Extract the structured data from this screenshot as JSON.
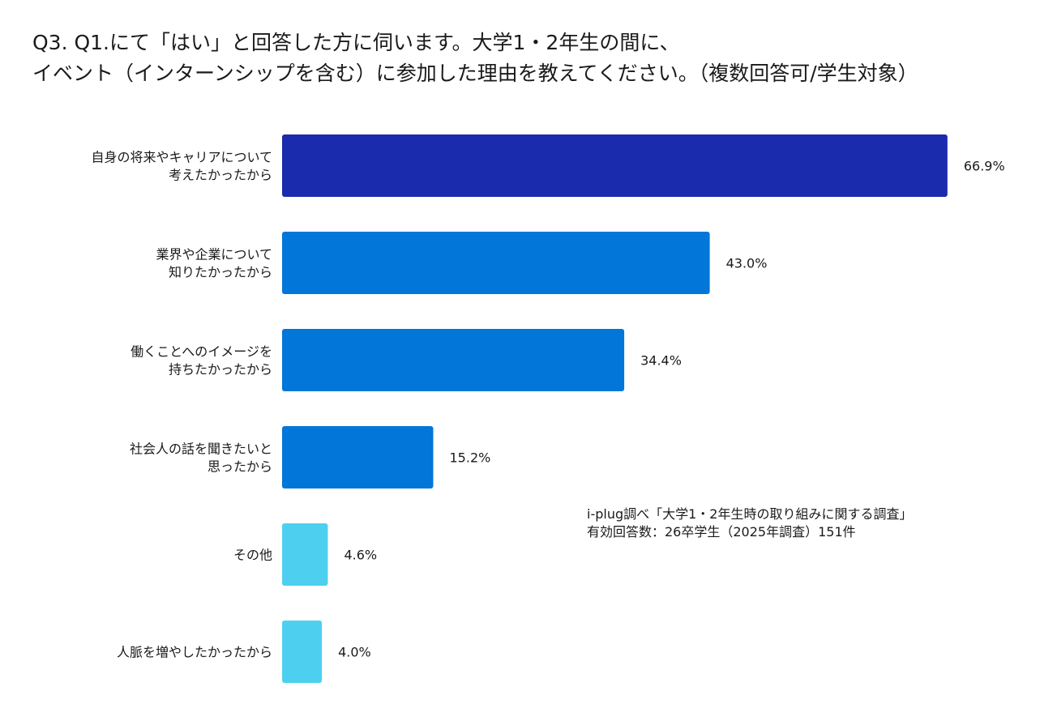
{
  "title_lines": [
    "Q3. Q1.にて「はい」と回答した方に伺います。大学1・2年生の間に、",
    "イベント（インターンシップを含む）に参加した理由を教えてください。（複数回答可/学生対象）"
  ],
  "source_note": [
    "i-plug調べ「大学1・2年生時の取り組みに関する調査」",
    "有効回答数：26卒学生（2025年調査）151件"
  ],
  "chart_data": {
    "type": "bar",
    "orientation": "horizontal",
    "title": "Q3. Q1.にて「はい」と回答した方に伺います。大学1・2年生の間に、イベント（インターンシップを含む）に参加した理由を教えてください。（複数回答可/学生対象）",
    "categories": [
      [
        "自身の将来やキャリアについて",
        "考えたかったから"
      ],
      [
        "業界や企業について",
        "知りたかったから"
      ],
      [
        "働くことへのイメージを",
        "持ちたかったから"
      ],
      [
        "社会人の話を聞きたいと",
        "思ったから"
      ],
      [
        "その他"
      ],
      [
        "人脈を増やしたかったから"
      ]
    ],
    "values": [
      66.9,
      43.0,
      34.4,
      15.2,
      4.6,
      4.0
    ],
    "value_labels": [
      "66.9%",
      "43.0%",
      "34.4%",
      "15.2%",
      "4.6%",
      "4.0%"
    ],
    "unit": "%",
    "colors": [
      "#1a2bad",
      "#0276d9",
      "#0276d9",
      "#0276d9",
      "#4dd0ef",
      "#4dd0ef"
    ],
    "xlim": [
      0,
      100
    ],
    "grid": false,
    "legend": "none"
  }
}
